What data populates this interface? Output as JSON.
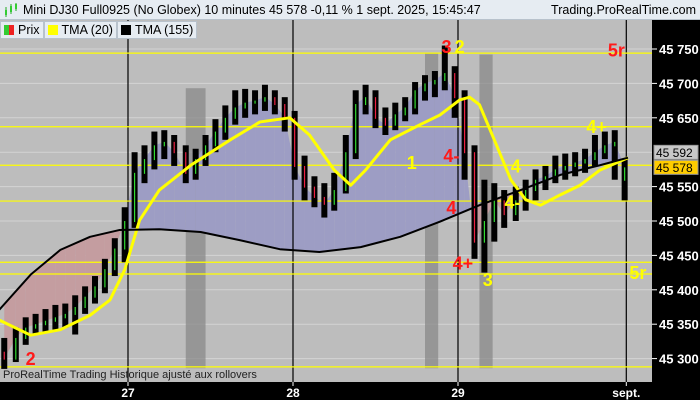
{
  "header": {
    "title": "Mini DJ30 Full0925 (No Globex) 10 minutes 45 578 -0,11 % 1 sept. 2025, 15:45:47",
    "site": "Trading.ProRealTime.com",
    "icon": "candlestick-chart-icon"
  },
  "legend": [
    {
      "label": "Prix",
      "colors": [
        "#33cc33",
        "#ee2222"
      ]
    },
    {
      "label": "TMA (20)",
      "colors": [
        "#ffff00"
      ]
    },
    {
      "label": "TMA (155)",
      "colors": [
        "#000000"
      ]
    }
  ],
  "footer": "ProRealTime Trading  Historique ajusté aux rollovers",
  "colors": {
    "background": "#bdbdbd",
    "grid": "#d4d4d4",
    "up": "#33dd33",
    "down": "#ee2244",
    "bar": "#000000",
    "tma20": "#ffff00",
    "tma155": "#000000",
    "fill_above": "#9d9dc4",
    "fill_below": "#c49da0",
    "level_lines": "#ffff00",
    "band": "#8a8a8a",
    "axis_bg": "#000000",
    "axis_text": "#ffffff"
  },
  "chart_data": {
    "type": "ohlc",
    "xlabel": "",
    "ylabel": "",
    "ylim": [
      45275,
      45790
    ],
    "yticks": [
      {
        "label": "45 300",
        "value": 45300
      },
      {
        "label": "45 350",
        "value": 45350
      },
      {
        "label": "45 400",
        "value": 45400
      },
      {
        "label": "45 450",
        "value": 45450
      },
      {
        "label": "45 500",
        "value": 45500
      },
      {
        "label": "45 550",
        "value": 45550
      },
      {
        "label": "45 650",
        "value": 45650
      },
      {
        "label": "45 700",
        "value": 45700
      },
      {
        "label": "45 750",
        "value": 45750
      }
    ],
    "xticks": [
      {
        "label": "27",
        "value": 27
      },
      {
        "label": "28",
        "value": 28
      },
      {
        "label": "29",
        "value": 29
      },
      {
        "label": "sept.",
        "value": 30.02
      }
    ],
    "bars_fields": [
      "x",
      "open",
      "high",
      "low",
      "close"
    ],
    "bars": [
      [
        26.25,
        45310,
        45330,
        45285,
        45300
      ],
      [
        26.32,
        45300,
        45345,
        45295,
        45330
      ],
      [
        26.38,
        45330,
        45360,
        45320,
        45345
      ],
      [
        26.44,
        45345,
        45365,
        45335,
        45350
      ],
      [
        26.5,
        45350,
        45372,
        45338,
        45355
      ],
      [
        26.56,
        45355,
        45378,
        45342,
        45360
      ],
      [
        26.62,
        45360,
        45380,
        45345,
        45365
      ],
      [
        26.68,
        45365,
        45392,
        45335,
        45375
      ],
      [
        26.74,
        45375,
        45405,
        45365,
        45390
      ],
      [
        26.8,
        45390,
        45420,
        45380,
        45405
      ],
      [
        26.86,
        45405,
        45445,
        45395,
        45430
      ],
      [
        26.92,
        45430,
        45475,
        45420,
        45460
      ],
      [
        26.98,
        45460,
        45520,
        45440,
        45500
      ],
      [
        27.04,
        45500,
        45600,
        45490,
        45570
      ],
      [
        27.1,
        45570,
        45610,
        45555,
        45590
      ],
      [
        27.16,
        45590,
        45630,
        45575,
        45610
      ],
      [
        27.22,
        45610,
        45632,
        45590,
        45615
      ],
      [
        27.28,
        45615,
        45625,
        45580,
        45600
      ],
      [
        27.35,
        45600,
        45610,
        45555,
        45570
      ],
      [
        27.41,
        45570,
        45605,
        45560,
        45590
      ],
      [
        27.47,
        45590,
        45625,
        45580,
        45610
      ],
      [
        27.53,
        45610,
        45648,
        45600,
        45630
      ],
      [
        27.59,
        45630,
        45668,
        45618,
        45650
      ],
      [
        27.65,
        45650,
        45690,
        45640,
        45665
      ],
      [
        27.71,
        45665,
        45692,
        45650,
        45672
      ],
      [
        27.77,
        45672,
        45690,
        45655,
        45675
      ],
      [
        27.83,
        45675,
        45698,
        45660,
        45680
      ],
      [
        27.89,
        45680,
        45690,
        45655,
        45670
      ],
      [
        27.95,
        45670,
        45680,
        45630,
        45650
      ],
      [
        28.01,
        45650,
        45660,
        45560,
        45580
      ],
      [
        28.07,
        45580,
        45595,
        45530,
        45550
      ],
      [
        28.13,
        45550,
        45565,
        45520,
        45535
      ],
      [
        28.19,
        45535,
        45555,
        45505,
        45525
      ],
      [
        28.25,
        45525,
        45570,
        45515,
        45545
      ],
      [
        28.32,
        45545,
        45625,
        45540,
        45600
      ],
      [
        28.38,
        45600,
        45690,
        45590,
        45670
      ],
      [
        28.44,
        45670,
        45698,
        45655,
        45680
      ],
      [
        28.5,
        45680,
        45690,
        45635,
        45650
      ],
      [
        28.56,
        45650,
        45665,
        45625,
        45640
      ],
      [
        28.62,
        45640,
        45672,
        45632,
        45655
      ],
      [
        28.68,
        45655,
        45680,
        45645,
        45665
      ],
      [
        28.74,
        45665,
        45702,
        45655,
        45690
      ],
      [
        28.8,
        45690,
        45712,
        45675,
        45700
      ],
      [
        28.86,
        45700,
        45718,
        45680,
        45705
      ],
      [
        28.92,
        45705,
        45755,
        45690,
        45715
      ],
      [
        28.98,
        45715,
        45725,
        45650,
        45680
      ],
      [
        29.04,
        45680,
        45690,
        45560,
        45600
      ],
      [
        29.1,
        45600,
        45610,
        45445,
        45470
      ],
      [
        29.16,
        45470,
        45560,
        45425,
        45500
      ],
      [
        29.22,
        45500,
        45555,
        45470,
        45530
      ],
      [
        29.28,
        45530,
        45545,
        45490,
        45510
      ],
      [
        29.35,
        45510,
        45550,
        45500,
        45530
      ],
      [
        29.41,
        45530,
        45560,
        45515,
        45545
      ],
      [
        29.47,
        45545,
        45575,
        45530,
        45560
      ],
      [
        29.53,
        45560,
        45580,
        45545,
        45565
      ],
      [
        29.59,
        45565,
        45595,
        45555,
        45575
      ],
      [
        29.65,
        45575,
        45598,
        45560,
        45580
      ],
      [
        29.71,
        45580,
        45600,
        45565,
        45585
      ],
      [
        29.77,
        45585,
        45605,
        45570,
        45590
      ],
      [
        29.83,
        45590,
        45625,
        45580,
        45600
      ],
      [
        29.89,
        45600,
        45630,
        45590,
        45610
      ],
      [
        29.95,
        45610,
        45632,
        45560,
        45615
      ],
      [
        30.01,
        45560,
        45590,
        45530,
        45578
      ]
    ],
    "series": [
      {
        "name": "TMA (20)",
        "color": "#ffff00",
        "points": [
          [
            26.22,
            45356
          ],
          [
            26.41,
            45334
          ],
          [
            26.59,
            45342
          ],
          [
            26.77,
            45363
          ],
          [
            26.89,
            45385
          ],
          [
            26.98,
            45429
          ],
          [
            27.07,
            45501
          ],
          [
            27.19,
            45545
          ],
          [
            27.38,
            45581
          ],
          [
            27.62,
            45618
          ],
          [
            27.8,
            45644
          ],
          [
            27.98,
            45650
          ],
          [
            28.1,
            45625
          ],
          [
            28.25,
            45574
          ],
          [
            28.35,
            45552
          ],
          [
            28.44,
            45574
          ],
          [
            28.59,
            45618
          ],
          [
            28.77,
            45640
          ],
          [
            28.89,
            45654
          ],
          [
            29.01,
            45676
          ],
          [
            29.07,
            45680
          ],
          [
            29.13,
            45669
          ],
          [
            29.22,
            45618
          ],
          [
            29.32,
            45560
          ],
          [
            29.41,
            45531
          ],
          [
            29.5,
            45523
          ],
          [
            29.62,
            45538
          ],
          [
            29.74,
            45552
          ],
          [
            29.86,
            45574
          ],
          [
            30.03,
            45592
          ]
        ]
      },
      {
        "name": "TMA (155)",
        "color": "#000000",
        "points": [
          [
            26.22,
            45371
          ],
          [
            26.41,
            45422
          ],
          [
            26.59,
            45458
          ],
          [
            26.77,
            45477
          ],
          [
            26.95,
            45487
          ],
          [
            27.19,
            45488
          ],
          [
            27.44,
            45484
          ],
          [
            27.68,
            45472
          ],
          [
            27.92,
            45459
          ],
          [
            28.16,
            45455
          ],
          [
            28.41,
            45462
          ],
          [
            28.65,
            45477
          ],
          [
            28.89,
            45499
          ],
          [
            29.13,
            45523
          ],
          [
            29.38,
            45545
          ],
          [
            29.62,
            45567
          ],
          [
            29.86,
            45581
          ],
          [
            30.03,
            45592
          ]
        ]
      }
    ],
    "level_lines": [
      45744,
      45637,
      45581,
      45529,
      45440,
      45423,
      45288
    ],
    "bands": [
      {
        "x0": 27.35,
        "x1": 27.47,
        "top": 45693,
        "bottom": 45286
      },
      {
        "x0": 28.8,
        "x1": 28.88,
        "top": 45744,
        "bottom": 45286
      },
      {
        "x0": 29.13,
        "x1": 29.21,
        "top": 45742,
        "bottom": 45286
      }
    ],
    "annotations": [
      {
        "text": "2",
        "color": "#ff1a1a",
        "x": 26.41,
        "y": 45288
      },
      {
        "text": "3",
        "color": "#ff1a1a",
        "x": 28.93,
        "y": 45754
      },
      {
        "text": "2",
        "color": "#ffff00",
        "x": 29.01,
        "y": 45754
      },
      {
        "text": "5r",
        "color": "#ff1a1a",
        "x": 29.96,
        "y": 45749
      },
      {
        "text": "1",
        "color": "#ffff00",
        "x": 28.72,
        "y": 45586
      },
      {
        "text": "4-",
        "color": "#ff1a1a",
        "x": 28.96,
        "y": 45596
      },
      {
        "text": "4",
        "color": "#ffff00",
        "x": 29.35,
        "y": 45581
      },
      {
        "text": "4",
        "color": "#ff1a1a",
        "x": 28.96,
        "y": 45520
      },
      {
        "text": "4-",
        "color": "#ffff00",
        "x": 29.33,
        "y": 45528
      },
      {
        "text": "4+",
        "color": "#ff1a1a",
        "x": 29.03,
        "y": 45440
      },
      {
        "text": "3",
        "color": "#ffff00",
        "x": 29.18,
        "y": 45416
      },
      {
        "text": "4+",
        "color": "#ffff00",
        "x": 29.84,
        "y": 45638
      },
      {
        "text": "5r",
        "color": "#ffff00",
        "x": 30.09,
        "y": 45426
      }
    ],
    "price_tags": [
      {
        "label": "45 592",
        "value": 45592,
        "bg": "#c8c8c8",
        "fg": "#000000"
      },
      {
        "label": "45 578",
        "value": 45578,
        "bg": "#ffcc00",
        "fg": "#000000"
      }
    ]
  }
}
